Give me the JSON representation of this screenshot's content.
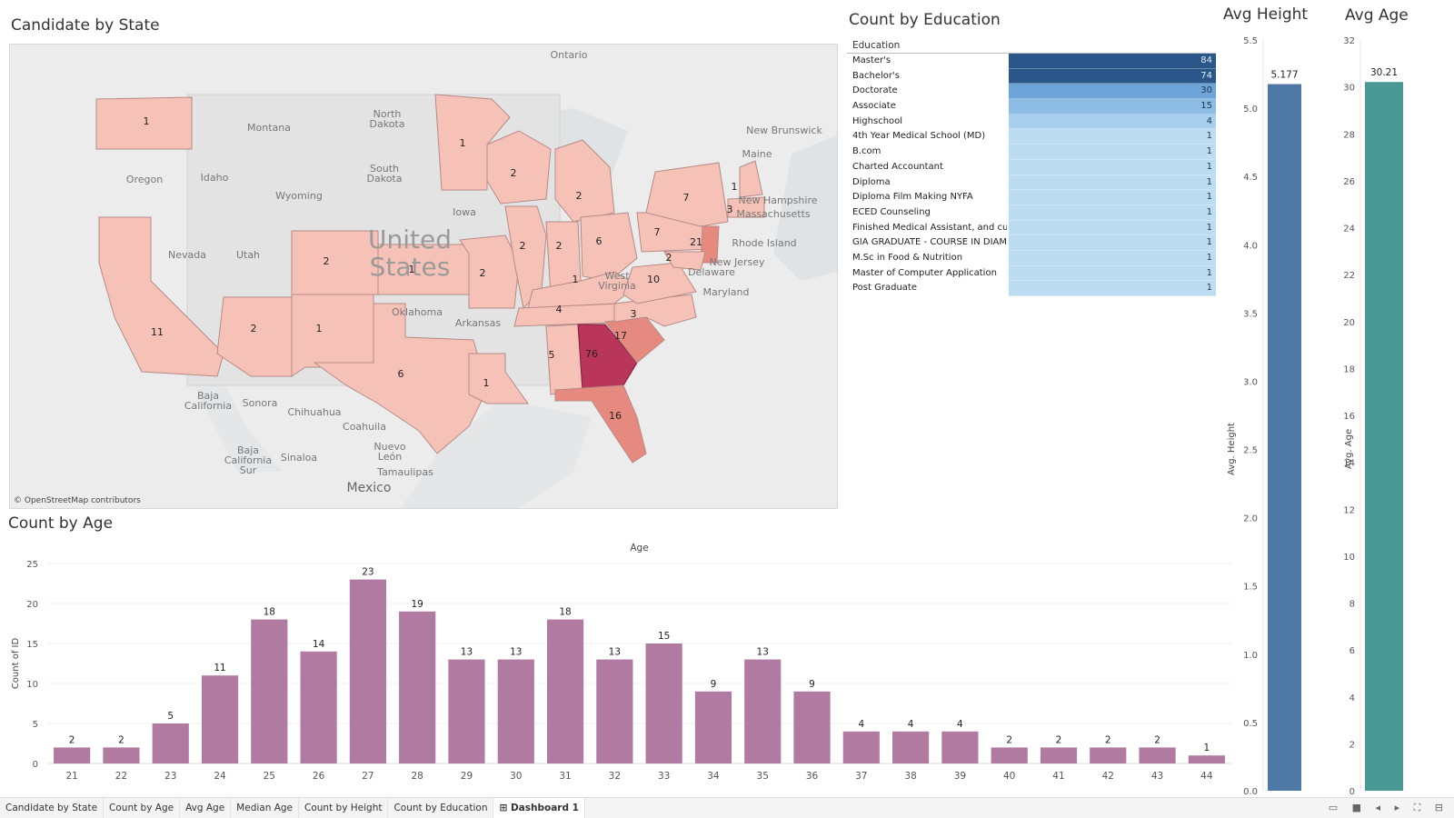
{
  "panels": {
    "state_title": "Candidate by State",
    "education_title": "Count by Education",
    "height_title": "Avg Height",
    "agechart_title": "Avg Age",
    "count_age_title": "Count by Age"
  },
  "map": {
    "attribution": "© OpenStreetMap contributors",
    "country_label": "United States",
    "place_labels": [
      "Ontario",
      "Montana",
      "North Dakota",
      "South Dakota",
      "Idaho",
      "Oregon",
      "Wyoming",
      "Nevada",
      "Utah",
      "Iowa",
      "Oklahoma",
      "Arkansas",
      "Maine",
      "New Brunswick",
      "New Hampshire",
      "Massachusetts",
      "Rhode Island",
      "New Jersey",
      "Delaware",
      "Maryland",
      "West Virginia",
      "Baja California",
      "Sonora",
      "Chihuahua",
      "Coahuila",
      "Nuevo León",
      "Tamaulipas",
      "Baja California Sur",
      "Sinaloa",
      "Mexico"
    ],
    "states": [
      {
        "name": "Washington",
        "count": 1
      },
      {
        "name": "California",
        "count": 11
      },
      {
        "name": "Arizona",
        "count": 2
      },
      {
        "name": "Colorado",
        "count": 2
      },
      {
        "name": "New Mexico",
        "count": 1
      },
      {
        "name": "Kansas",
        "count": 1
      },
      {
        "name": "Texas",
        "count": 6
      },
      {
        "name": "Minnesota",
        "count": 1
      },
      {
        "name": "Wisconsin",
        "count": 2
      },
      {
        "name": "Missouri",
        "count": 2
      },
      {
        "name": "Illinois",
        "count": 2
      },
      {
        "name": "Indiana",
        "count": 2
      },
      {
        "name": "Michigan",
        "count": 2
      },
      {
        "name": "Ohio",
        "count": 6
      },
      {
        "name": "Kentucky",
        "count": 1
      },
      {
        "name": "Tennessee",
        "count": 4
      },
      {
        "name": "Louisiana",
        "count": 1
      },
      {
        "name": "Alabama",
        "count": 5
      },
      {
        "name": "Georgia",
        "count": 76
      },
      {
        "name": "South Carolina",
        "count": 17
      },
      {
        "name": "North Carolina",
        "count": 3
      },
      {
        "name": "Virginia",
        "count": 10
      },
      {
        "name": "Pennsylvania",
        "count": 7
      },
      {
        "name": "New York",
        "count": 7
      },
      {
        "name": "New Jersey",
        "count": 21
      },
      {
        "name": "Maryland",
        "count": 2
      },
      {
        "name": "Massachusetts",
        "count": 3
      },
      {
        "name": "Vermont",
        "count": 1
      },
      {
        "name": "Florida",
        "count": 16
      }
    ]
  },
  "education": {
    "header": "Education",
    "rows": [
      {
        "label": "Master's",
        "count": 84
      },
      {
        "label": "Bachelor's",
        "count": 74
      },
      {
        "label": "Doctorate",
        "count": 30
      },
      {
        "label": "Associate",
        "count": 15
      },
      {
        "label": "Highschool",
        "count": 4
      },
      {
        "label": "4th Year Medical School (MD)",
        "count": 1
      },
      {
        "label": "B.com",
        "count": 1
      },
      {
        "label": "Charted Accountant",
        "count": 1
      },
      {
        "label": "Diploma",
        "count": 1
      },
      {
        "label": "Diploma Film Making NYFA",
        "count": 1
      },
      {
        "label": "ECED Counseling",
        "count": 1
      },
      {
        "label": "Finished Medical Assistant, and cur..",
        "count": 1
      },
      {
        "label": "GIA GRADUATE - COURSE IN DIAMO..",
        "count": 1
      },
      {
        "label": "M.Sc in Food & Nutrition",
        "count": 1
      },
      {
        "label": "Master of Computer Application",
        "count": 1
      },
      {
        "label": "Post Graduate",
        "count": 1
      }
    ]
  },
  "colors": {
    "age_bar": "#b07aa1",
    "height_bar": "#4e79a7",
    "avgage_bar": "#499894",
    "map_dark": "#b9355a",
    "map_mid": "#e68a80",
    "map_light": "#f6c2b8"
  },
  "chart_data": [
    {
      "type": "bar",
      "title": "Count by Age",
      "xlabel": "Age",
      "ylabel": "Count of ID",
      "categories": [
        "21",
        "22",
        "23",
        "24",
        "25",
        "26",
        "27",
        "28",
        "29",
        "30",
        "31",
        "32",
        "33",
        "34",
        "35",
        "36",
        "37",
        "38",
        "39",
        "40",
        "41",
        "42",
        "43",
        "44"
      ],
      "values": [
        2,
        2,
        5,
        11,
        18,
        14,
        23,
        19,
        13,
        13,
        18,
        13,
        15,
        9,
        13,
        9,
        4,
        4,
        4,
        2,
        2,
        2,
        2,
        1
      ],
      "yticks": [
        0,
        5,
        10,
        15,
        20,
        25
      ],
      "ylim": [
        0,
        25
      ]
    },
    {
      "type": "bar",
      "title": "Avg Height",
      "ylabel": "Avg. Height",
      "values": [
        5.177
      ],
      "value_label": "5.177",
      "yticks": [
        "0.0",
        "0.5",
        "1.0",
        "1.5",
        "2.0",
        "2.5",
        "3.0",
        "3.5",
        "4.0",
        "4.5",
        "5.0",
        "5.5"
      ],
      "ylim": [
        0,
        5.5
      ]
    },
    {
      "type": "bar",
      "title": "Avg Age",
      "ylabel": "Avg. Age",
      "values": [
        30.21
      ],
      "value_label": "30.21",
      "yticks": [
        "0",
        "2",
        "4",
        "6",
        "8",
        "10",
        "12",
        "14",
        "16",
        "18",
        "20",
        "22",
        "24",
        "26",
        "28",
        "30",
        "32"
      ],
      "ylim": [
        0,
        32
      ]
    }
  ],
  "tabs": [
    "Candidate by State",
    "Count by Age",
    "Avg Age",
    "Median Age",
    "Count by Height",
    "Count by Education",
    "Dashboard 1"
  ],
  "active_tab": "Dashboard 1"
}
